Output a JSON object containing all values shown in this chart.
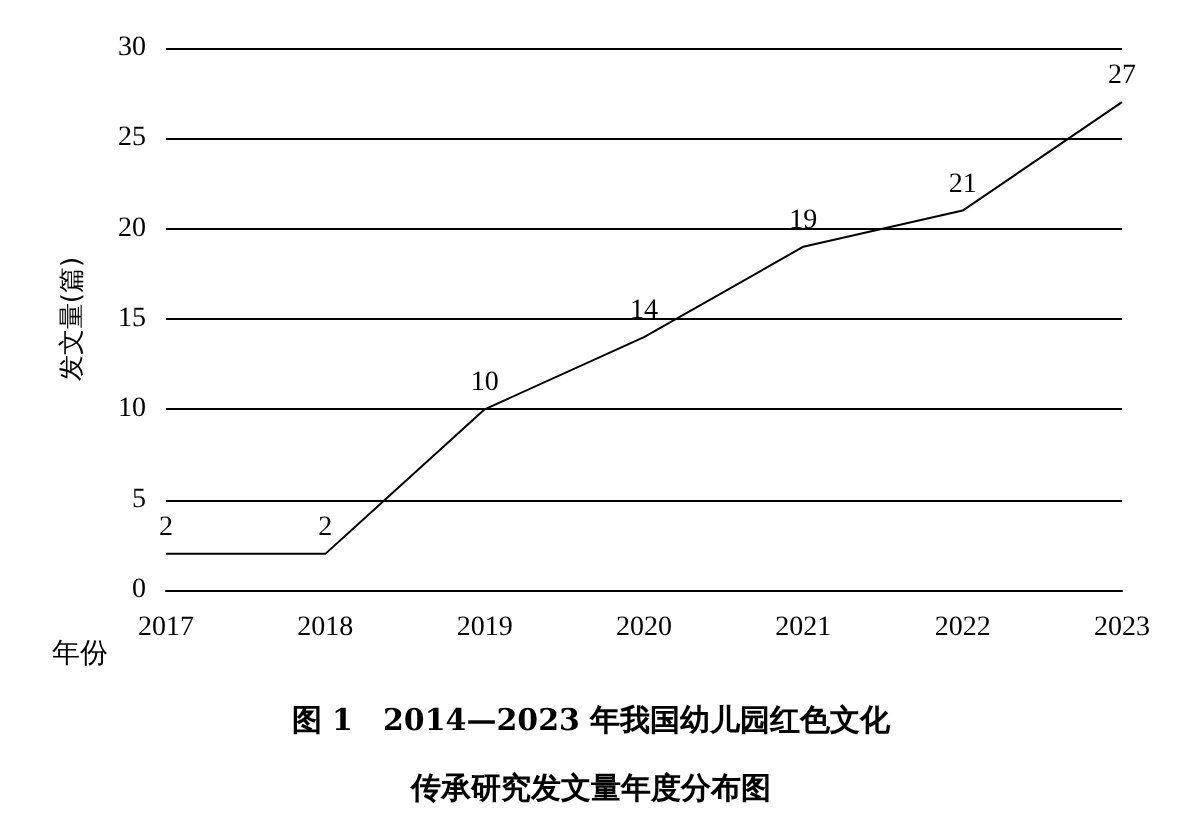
{
  "chart_data": {
    "type": "line",
    "title": "图 1　2014—2023 年我国幼儿园红色文化传承研究发文量年度分布图",
    "xlabel": "年份",
    "ylabel": "发文量(篇)",
    "categories": [
      "2017",
      "2018",
      "2019",
      "2020",
      "2021",
      "2022",
      "2023"
    ],
    "series": [
      {
        "color": "#000000",
        "values": [
          2,
          2,
          10,
          14,
          19,
          21,
          27
        ]
      }
    ],
    "ylim": [
      0,
      30
    ],
    "yticks": [
      0,
      5,
      10,
      15,
      20,
      25,
      30
    ],
    "grid": "y",
    "marker": "none",
    "line_style": "solid",
    "data_labels": true
  }
}
